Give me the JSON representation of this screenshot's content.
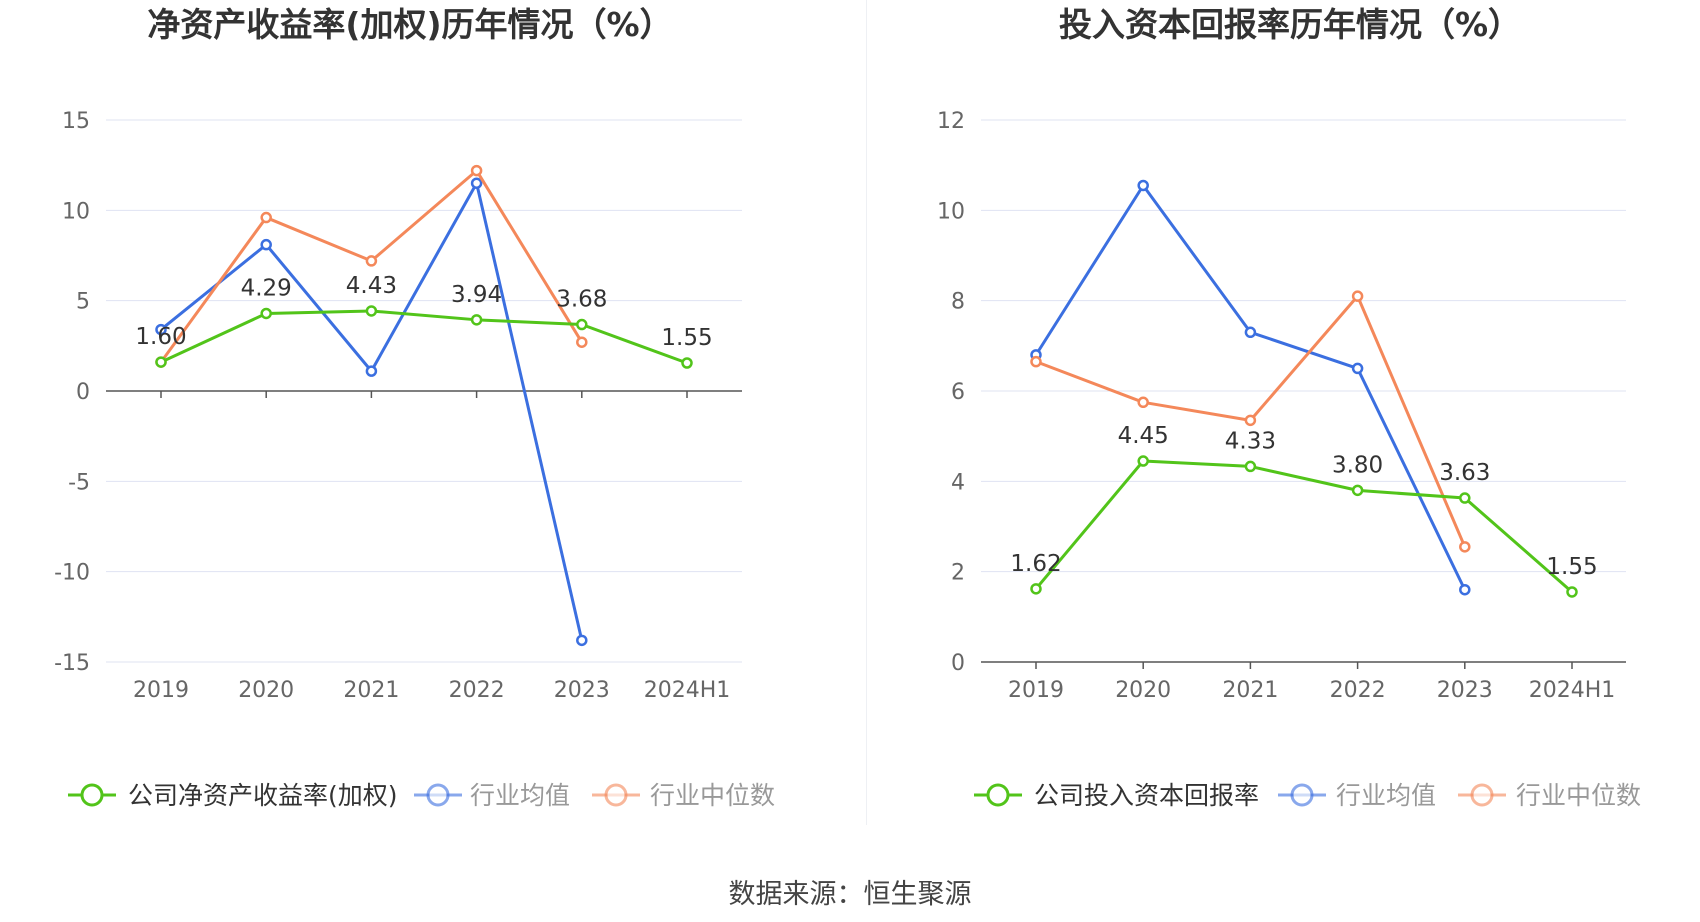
{
  "colors": {
    "company": "#52c41a",
    "industry_avg": "#3b6fe0",
    "industry_median": "#f4885a",
    "grid": "#dfe3f2",
    "axis": "#555555",
    "tick_label": "#666666",
    "title": "#333333"
  },
  "source": "数据来源：恒生聚源",
  "chart_data": [
    {
      "type": "line",
      "title": "净资产收益率(加权)历年情况（%）",
      "categories": [
        "2019",
        "2020",
        "2021",
        "2022",
        "2023",
        "2024H1"
      ],
      "ylim": [
        -15,
        15
      ],
      "yticks": [
        15,
        10,
        5,
        0,
        -5,
        -10,
        -15
      ],
      "grid": true,
      "legend_position": "bottom",
      "series": [
        {
          "name": "公司净资产收益率(加权)",
          "key": "company",
          "values": [
            1.6,
            4.29,
            4.43,
            3.94,
            3.68,
            1.55
          ],
          "labels": [
            "1.60",
            "4.29",
            "4.43",
            "3.94",
            "3.68",
            "1.55"
          ]
        },
        {
          "name": "行业均值",
          "key": "industry_avg",
          "values": [
            3.4,
            8.1,
            1.1,
            11.5,
            -13.8,
            null
          ]
        },
        {
          "name": "行业中位数",
          "key": "industry_median",
          "values": [
            1.6,
            9.6,
            7.2,
            12.2,
            2.7,
            null
          ]
        }
      ]
    },
    {
      "type": "line",
      "title": "投入资本回报率历年情况（%）",
      "categories": [
        "2019",
        "2020",
        "2021",
        "2022",
        "2023",
        "2024H1"
      ],
      "ylim": [
        0,
        12
      ],
      "yticks": [
        12,
        10,
        8,
        6,
        4,
        2,
        0
      ],
      "grid": true,
      "legend_position": "bottom",
      "series": [
        {
          "name": "公司投入资本回报率",
          "key": "company",
          "values": [
            1.62,
            4.45,
            4.33,
            3.8,
            3.63,
            1.55
          ],
          "labels": [
            "1.62",
            "4.45",
            "4.33",
            "3.80",
            "3.63",
            "1.55"
          ]
        },
        {
          "name": "行业均值",
          "key": "industry_avg",
          "values": [
            6.8,
            10.55,
            7.3,
            6.5,
            1.6,
            null
          ]
        },
        {
          "name": "行业中位数",
          "key": "industry_median",
          "values": [
            6.65,
            5.75,
            5.35,
            8.1,
            2.55,
            null
          ]
        }
      ]
    }
  ]
}
